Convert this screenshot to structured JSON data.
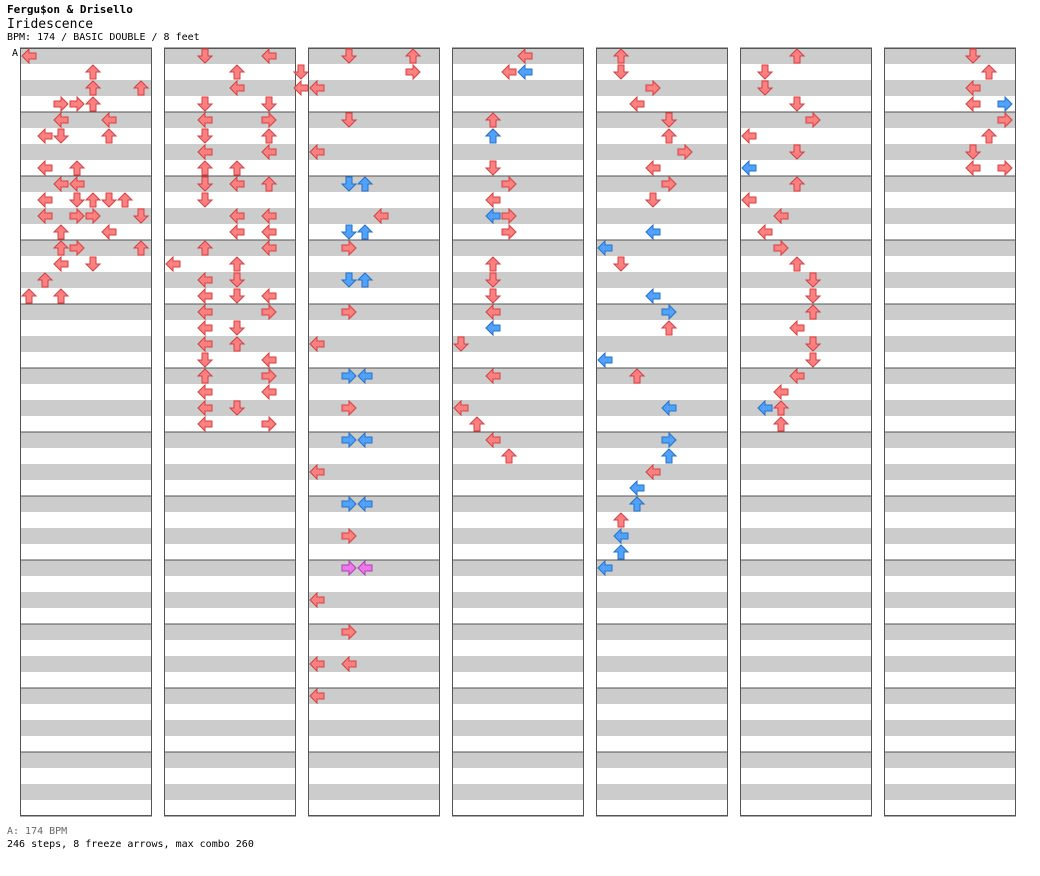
{
  "song": {
    "artist": "Fergu$on & Drisello",
    "title": "Iridescence",
    "meta": "BPM: 174 / BASIC DOUBLE / 8 feet",
    "bpm_marker": "A"
  },
  "footer": {
    "bpm_legend": "A: 174 BPM",
    "stats": "246 steps, 8 freeze arrows, max combo 260"
  },
  "colors": {
    "quarter": "#ff8080",
    "eighth": "#4fa3ff",
    "sixteenth": "#ee77ee",
    "freeze": "#a8f5a8",
    "stripe": "#cccccc"
  },
  "chart": {
    "columns": 7,
    "measures_per_column": 12,
    "lanes": [
      "L1",
      "D1",
      "U1",
      "R1",
      "L2",
      "D2",
      "U2",
      "R2"
    ],
    "notes_per_column": [
      [
        [
          5,
          2,
          "D"
        ],
        [
          5,
          5,
          "U"
        ],
        [
          4,
          2,
          "L"
        ],
        [
          4,
          5,
          "L"
        ],
        [
          0,
          0,
          "L"
        ],
        [
          1,
          4,
          "U"
        ],
        [
          3,
          2,
          "R"
        ],
        [
          3,
          3,
          "R"
        ],
        [
          3,
          4,
          "U"
        ],
        [
          5,
          1,
          "L"
        ],
        [
          2,
          4,
          "U"
        ],
        [
          2,
          7,
          "U"
        ],
        [
          7,
          1,
          "L"
        ],
        [
          7,
          3,
          "U"
        ],
        [
          8,
          2,
          "L"
        ],
        [
          8,
          3,
          "L"
        ],
        [
          9,
          1,
          "L"
        ],
        [
          9,
          3,
          "D"
        ],
        [
          9,
          4,
          "U"
        ],
        [
          9,
          5,
          "D"
        ],
        [
          9,
          6,
          "U"
        ],
        [
          10,
          1,
          "L"
        ],
        [
          10,
          3,
          "R"
        ],
        [
          10,
          4,
          "R"
        ],
        [
          10,
          7,
          "D"
        ],
        [
          11,
          2,
          "U"
        ],
        [
          11,
          5,
          "L"
        ],
        [
          12,
          2,
          "U"
        ],
        [
          12,
          3,
          "R"
        ],
        [
          12,
          7,
          "U"
        ],
        [
          13,
          2,
          "L"
        ],
        [
          13,
          4,
          "D"
        ],
        [
          14,
          1,
          "U"
        ],
        [
          15,
          0,
          "U"
        ],
        [
          15,
          2,
          "U"
        ]
      ],
      [
        [
          0,
          2,
          "D"
        ],
        [
          0,
          6,
          "L"
        ],
        [
          1,
          4,
          "U"
        ],
        [
          1,
          8,
          "D"
        ],
        [
          2,
          4,
          "L"
        ],
        [
          2,
          8,
          "L"
        ],
        [
          3,
          2,
          "D"
        ],
        [
          3,
          6,
          "D"
        ],
        [
          4,
          2,
          "L"
        ],
        [
          4,
          6,
          "R"
        ],
        [
          5,
          2,
          "D"
        ],
        [
          5,
          6,
          "U"
        ],
        [
          6,
          2,
          "L"
        ],
        [
          6,
          6,
          "L"
        ],
        [
          7,
          2,
          "U"
        ],
        [
          7,
          4,
          "U"
        ],
        [
          8,
          2,
          "D"
        ],
        [
          8,
          4,
          "L"
        ],
        [
          8,
          6,
          "U"
        ],
        [
          9,
          2,
          "D"
        ],
        [
          10,
          4,
          "L"
        ],
        [
          10,
          6,
          "L"
        ],
        [
          11,
          4,
          "L"
        ],
        [
          11,
          6,
          "L"
        ],
        [
          12,
          2,
          "U"
        ],
        [
          12,
          6,
          "L"
        ],
        [
          13,
          0,
          "L"
        ],
        [
          13,
          4,
          "U"
        ],
        [
          14,
          2,
          "L"
        ],
        [
          14,
          4,
          "D"
        ],
        [
          15,
          2,
          "L"
        ],
        [
          15,
          4,
          "D"
        ],
        [
          15,
          6,
          "L"
        ],
        [
          16,
          2,
          "L"
        ],
        [
          16,
          6,
          "R"
        ],
        [
          17,
          2,
          "L"
        ],
        [
          17,
          4,
          "D"
        ],
        [
          18,
          2,
          "L"
        ],
        [
          18,
          4,
          "U"
        ],
        [
          19,
          2,
          "D"
        ],
        [
          19,
          6,
          "L"
        ],
        [
          20,
          2,
          "U"
        ],
        [
          20,
          6,
          "R"
        ],
        [
          21,
          2,
          "L"
        ],
        [
          21,
          6,
          "L"
        ],
        [
          22,
          2,
          "L"
        ],
        [
          22,
          4,
          "D"
        ],
        [
          23,
          2,
          "L"
        ],
        [
          23,
          6,
          "R"
        ]
      ],
      [
        [
          0,
          2,
          "D"
        ],
        [
          0,
          6,
          "U"
        ],
        [
          1,
          6,
          "R"
        ],
        [
          2,
          0,
          "L"
        ],
        [
          4,
          2,
          "D"
        ],
        [
          6,
          0,
          "L"
        ],
        [
          8,
          2,
          "D",
          "e"
        ],
        [
          8,
          3,
          "U",
          "e"
        ],
        [
          10,
          4,
          "L"
        ],
        [
          11,
          2,
          "D",
          "e"
        ],
        [
          11,
          3,
          "U",
          "e"
        ],
        [
          12,
          2,
          "R"
        ],
        [
          14,
          2,
          "D",
          "e"
        ],
        [
          14,
          3,
          "U",
          "e"
        ],
        [
          16,
          2,
          "R"
        ],
        [
          18,
          0,
          "L"
        ],
        [
          20,
          2,
          "R",
          "e"
        ],
        [
          20,
          3,
          "L",
          "e"
        ],
        [
          22,
          2,
          "R"
        ],
        [
          24,
          2,
          "R",
          "e"
        ],
        [
          24,
          3,
          "L",
          "e"
        ],
        [
          26,
          0,
          "L"
        ],
        [
          28,
          2,
          "R",
          "e"
        ],
        [
          28,
          3,
          "L",
          "e"
        ],
        [
          30,
          2,
          "R"
        ],
        [
          32,
          2,
          "R",
          "s"
        ],
        [
          32,
          3,
          "L",
          "s"
        ],
        [
          34,
          0,
          "L"
        ],
        [
          36,
          2,
          "R"
        ],
        [
          38,
          0,
          "L"
        ],
        [
          38,
          2,
          "L"
        ],
        [
          40,
          0,
          "L"
        ]
      ],
      [
        [
          0,
          4,
          "L"
        ],
        [
          1,
          3,
          "L"
        ],
        [
          1,
          4,
          "L",
          "e"
        ],
        [
          4,
          2,
          "U"
        ],
        [
          5,
          2,
          "U"
        ],
        [
          5,
          2,
          "U",
          "e"
        ],
        [
          7,
          2,
          "D"
        ],
        [
          8,
          3,
          "R"
        ],
        [
          9,
          2,
          "L"
        ],
        [
          10,
          2,
          "L",
          "e"
        ],
        [
          10,
          3,
          "R"
        ],
        [
          11,
          3,
          "R"
        ],
        [
          13,
          2,
          "U"
        ],
        [
          14,
          2,
          "D"
        ],
        [
          15,
          2,
          "D"
        ],
        [
          16,
          2,
          "L"
        ],
        [
          17,
          2,
          "L"
        ],
        [
          17,
          2,
          "L",
          "e"
        ],
        [
          18,
          0,
          "D"
        ],
        [
          20,
          2,
          "L"
        ],
        [
          22,
          0,
          "L"
        ],
        [
          23,
          1,
          "U"
        ],
        [
          24,
          2,
          "L"
        ],
        [
          25,
          3,
          "U"
        ]
      ],
      [
        [
          0,
          1,
          "U"
        ],
        [
          1,
          1,
          "D"
        ],
        [
          2,
          3,
          "R"
        ],
        [
          3,
          2,
          "L"
        ],
        [
          4,
          4,
          "D"
        ],
        [
          5,
          4,
          "U"
        ],
        [
          6,
          5,
          "R"
        ],
        [
          7,
          3,
          "L"
        ],
        [
          8,
          4,
          "R"
        ],
        [
          9,
          3,
          "D"
        ],
        [
          11,
          3,
          "L",
          "e"
        ],
        [
          12,
          0,
          "L",
          "e"
        ],
        [
          13,
          1,
          "D"
        ],
        [
          15,
          3,
          "L",
          "e"
        ],
        [
          16,
          4,
          "R",
          "e"
        ],
        [
          17,
          4,
          "U"
        ],
        [
          19,
          0,
          "L",
          "e"
        ],
        [
          20,
          2,
          "U"
        ],
        [
          22,
          4,
          "L",
          "e"
        ],
        [
          24,
          4,
          "R",
          "e"
        ],
        [
          25,
          4,
          "U",
          "e"
        ],
        [
          26,
          3,
          "L"
        ],
        [
          27,
          2,
          "L",
          "e"
        ],
        [
          28,
          2,
          "U",
          "e"
        ],
        [
          29,
          1,
          "U"
        ],
        [
          30,
          1,
          "L",
          "e"
        ],
        [
          31,
          1,
          "U",
          "e"
        ],
        [
          32,
          0,
          "L",
          "e"
        ]
      ],
      [
        [
          0,
          3,
          "U"
        ],
        [
          1,
          1,
          "D"
        ],
        [
          2,
          1,
          "D"
        ],
        [
          3,
          3,
          "D"
        ],
        [
          4,
          4,
          "R"
        ],
        [
          5,
          0,
          "L"
        ],
        [
          6,
          3,
          "D"
        ],
        [
          7,
          0,
          "L",
          "e"
        ],
        [
          8,
          3,
          "U"
        ],
        [
          9,
          0,
          "L"
        ],
        [
          10,
          2,
          "L"
        ],
        [
          11,
          1,
          "L"
        ],
        [
          12,
          2,
          "R"
        ],
        [
          13,
          3,
          "U"
        ],
        [
          14,
          4,
          "D"
        ],
        [
          15,
          4,
          "D"
        ],
        [
          16,
          4,
          "U"
        ],
        [
          17,
          3,
          "L"
        ],
        [
          18,
          4,
          "D"
        ],
        [
          19,
          4,
          "D"
        ],
        [
          20,
          3,
          "L"
        ],
        [
          21,
          2,
          "L"
        ],
        [
          22,
          1,
          "L",
          "e"
        ],
        [
          22,
          2,
          "U"
        ],
        [
          23,
          2,
          "U"
        ]
      ],
      [
        [
          0,
          5,
          "D"
        ],
        [
          1,
          6,
          "U"
        ],
        [
          2,
          5,
          "L"
        ],
        [
          3,
          5,
          "L"
        ],
        [
          3,
          7,
          "R",
          "e"
        ],
        [
          4,
          7,
          "R"
        ],
        [
          5,
          6,
          "U"
        ],
        [
          6,
          5,
          "D"
        ],
        [
          7,
          5,
          "L"
        ],
        [
          7,
          7,
          "R"
        ]
      ]
    ]
  }
}
